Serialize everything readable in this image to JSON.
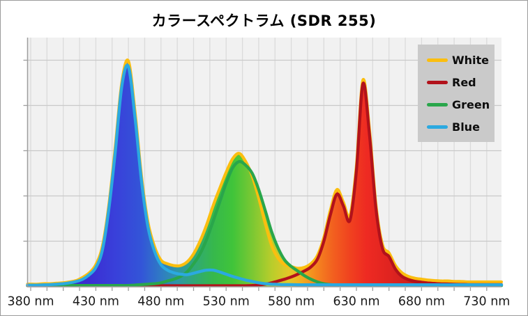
{
  "chart_data": {
    "type": "area",
    "title": "カラースペクトラム (SDR 255)",
    "xlabel": "",
    "ylabel": "",
    "x_unit": "nm",
    "xlim": [
      380,
      730
    ],
    "ylim": [
      0,
      275
    ],
    "grid": true,
    "y_axis_labels_visible": false,
    "y_gridline_count": 5,
    "legend_position": "top-right-inside",
    "legend_background": "#cacaca",
    "plot_background": "#f1f1f1",
    "x_tick_labels": [
      "380 nm",
      "430 nm",
      "480 nm",
      "530 nm",
      "580 nm",
      "630 nm",
      "680 nm",
      "730 nm"
    ],
    "wavelengths_nm": [
      380,
      385,
      390,
      395,
      400,
      405,
      410,
      415,
      420,
      425,
      430,
      435,
      440,
      445,
      450,
      455,
      460,
      465,
      470,
      475,
      480,
      485,
      490,
      495,
      500,
      505,
      510,
      515,
      520,
      525,
      530,
      535,
      540,
      545,
      550,
      555,
      560,
      565,
      570,
      575,
      580,
      585,
      590,
      595,
      600,
      605,
      610,
      615,
      620,
      625,
      630,
      635,
      640,
      645,
      650,
      655,
      660,
      665,
      670,
      675,
      680,
      685,
      690,
      695,
      700,
      705,
      710,
      715,
      720,
      725,
      730
    ],
    "series": [
      {
        "name": "White",
        "color": "#FBBE0F",
        "values": [
          2.5,
          2.5,
          3,
          3,
          3.5,
          4,
          5,
          6.5,
          10,
          15,
          24,
          44,
          90,
          155,
          226,
          249,
          194,
          122,
          71,
          44,
          29,
          25,
          23,
          23,
          27,
          36,
          50,
          68,
          89,
          108,
          126,
          141,
          147,
          138,
          122,
          98,
          70,
          45,
          31,
          24,
          22,
          20,
          21,
          25,
          34,
          54,
          84,
          107,
          93,
          78,
          133,
          228,
          173,
          90,
          46,
          37,
          23,
          15,
          11,
          9,
          8,
          7,
          6.5,
          6,
          6,
          5.5,
          5.5,
          5,
          5,
          5,
          5
        ]
      },
      {
        "name": "Red",
        "color": "#B2121B",
        "values": [
          0.8,
          0.8,
          0.8,
          0.8,
          0.8,
          0.8,
          0.8,
          0.8,
          0.8,
          0.8,
          0.8,
          0.8,
          0.8,
          0.8,
          0.8,
          0.8,
          0.8,
          0.8,
          0.8,
          0.8,
          0.8,
          0.8,
          0.8,
          0.8,
          0.8,
          0.8,
          0.8,
          0.8,
          0.8,
          0.8,
          0.8,
          0.8,
          0.8,
          0.8,
          1,
          1.5,
          2.5,
          4,
          6,
          8,
          10.5,
          13.5,
          17,
          21.5,
          30,
          50,
          79,
          102,
          89,
          73,
          128,
          224,
          168,
          86,
          42,
          33,
          19,
          11,
          7.5,
          5.5,
          4.5,
          3.8,
          3.2,
          2.8,
          2.6,
          2.4,
          2.2,
          2.1,
          2,
          2,
          2
        ]
      },
      {
        "name": "Green",
        "color": "#29A64B",
        "values": [
          1,
          1,
          1,
          1,
          1,
          1,
          1,
          1,
          1,
          1,
          1,
          1,
          1,
          1,
          1,
          1,
          1.5,
          2,
          2.5,
          3,
          4,
          6,
          8,
          11,
          16,
          25,
          36,
          52,
          72,
          93,
          114,
          131,
          138,
          134,
          125,
          107,
          84,
          60,
          42,
          29,
          22,
          17,
          12,
          8,
          5,
          3,
          2,
          1.5,
          1.2,
          1,
          1,
          1,
          1,
          1,
          1,
          1,
          1,
          1,
          1,
          1,
          1,
          1,
          1,
          1,
          1,
          1,
          1,
          1,
          1,
          1,
          1
        ]
      },
      {
        "name": "Blue",
        "color": "#2BA9E0",
        "values": [
          1.5,
          1.5,
          1.8,
          2,
          2.5,
          3,
          4,
          5.5,
          8,
          13,
          21,
          40,
          86,
          150,
          222,
          243,
          188,
          117,
          66,
          39,
          24,
          18,
          15,
          13.5,
          13,
          14.5,
          16.5,
          18,
          18,
          16,
          13.5,
          11,
          9,
          7,
          5.5,
          4,
          3,
          2.5,
          2.2,
          2,
          2,
          1.8,
          1.8,
          1.8,
          1.8,
          1.8,
          1.8,
          1.8,
          1.8,
          1.8,
          1.8,
          1.8,
          1.8,
          1.8,
          1.8,
          1.8,
          1.8,
          1.8,
          1.8,
          1.8,
          1.8,
          1.8,
          1.8,
          1.8,
          1.8,
          1.8,
          1.8,
          1.8,
          1.8,
          1.8,
          1.8
        ]
      }
    ],
    "spectral_gradient_stops": [
      {
        "nm": 380,
        "color": "#3C1EC0"
      },
      {
        "nm": 425,
        "color": "#3A2ED2"
      },
      {
        "nm": 445,
        "color": "#3940DA"
      },
      {
        "nm": 465,
        "color": "#3355D8"
      },
      {
        "nm": 480,
        "color": "#2F7BC4"
      },
      {
        "nm": 492,
        "color": "#2F96A8"
      },
      {
        "nm": 505,
        "color": "#30A878"
      },
      {
        "nm": 520,
        "color": "#36B84C"
      },
      {
        "nm": 535,
        "color": "#40C43A"
      },
      {
        "nm": 550,
        "color": "#7AC833"
      },
      {
        "nm": 565,
        "color": "#B9CD2B"
      },
      {
        "nm": 578,
        "color": "#E2C828"
      },
      {
        "nm": 588,
        "color": "#F2AE20"
      },
      {
        "nm": 600,
        "color": "#F4831F"
      },
      {
        "nm": 612,
        "color": "#F2601F"
      },
      {
        "nm": 625,
        "color": "#F0421F"
      },
      {
        "nm": 638,
        "color": "#EE2A22"
      },
      {
        "nm": 655,
        "color": "#E02420"
      },
      {
        "nm": 675,
        "color": "#C9201E"
      },
      {
        "nm": 700,
        "color": "#B01C1C"
      },
      {
        "nm": 730,
        "color": "#9A1919"
      }
    ]
  }
}
